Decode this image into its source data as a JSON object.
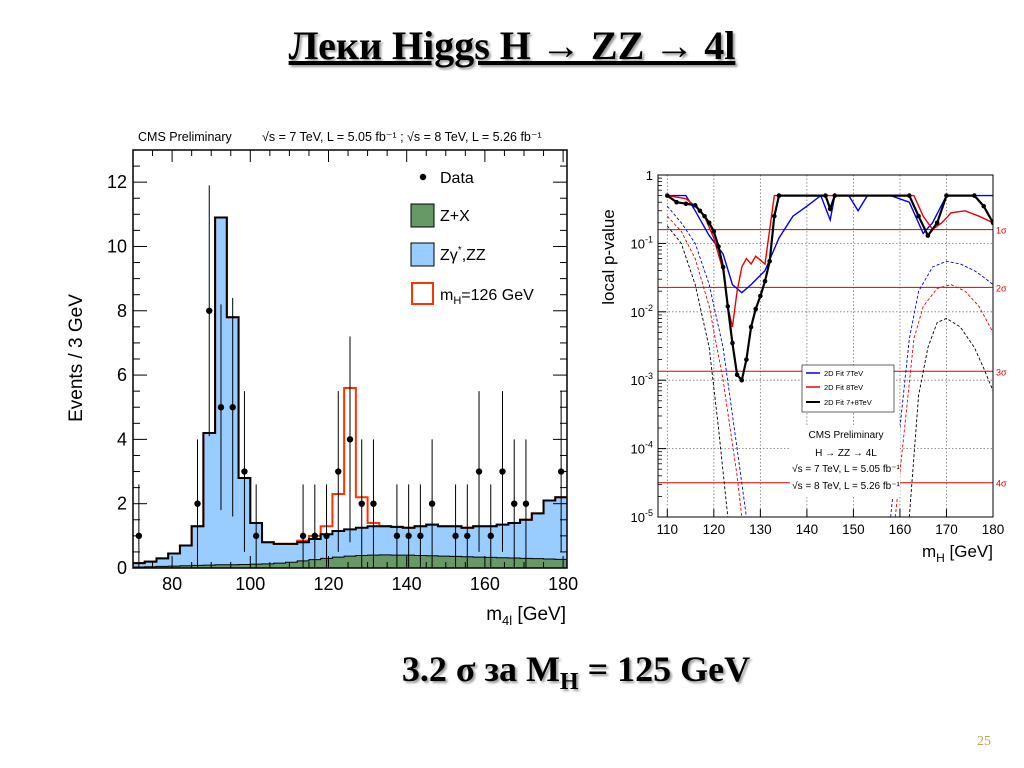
{
  "slide": {
    "title": "Леки Higgs H → ZZ → 4l",
    "subtitle_main": "3.2 σ за M",
    "subtitle_sub": "H",
    "subtitle_tail": " = 125 GeV",
    "page_number": "25"
  },
  "chart_data": [
    {
      "type": "bar",
      "title": "CMS Preliminary",
      "subtitle": "√s = 7 TeV, L = 5.05 fb⁻¹ ; √s = 8 TeV, L = 5.26 fb⁻¹",
      "xlabel_main": "m",
      "xlabel_sub": "4l",
      "xlabel_tail": " [GeV]",
      "ylabel": "Events / 3 GeV",
      "xlim": [
        70,
        181
      ],
      "ylim": [
        0,
        13
      ],
      "x_ticks": [
        80,
        100,
        120,
        140,
        160,
        180
      ],
      "y_ticks": [
        0,
        2,
        4,
        6,
        8,
        10,
        12
      ],
      "legend": {
        "position": "top-right",
        "entries": [
          {
            "key": "data",
            "label": "Data"
          },
          {
            "key": "zx",
            "label": "Z+X"
          },
          {
            "key": "zz",
            "label_main": "Zγ",
            "label_sup": "*",
            "label_tail": ",ZZ"
          },
          {
            "key": "sig",
            "label_main": "m",
            "label_sub": "H",
            "label_tail": "=126 GeV"
          }
        ]
      },
      "colors": {
        "zz_fill": "#99ccff",
        "zx_fill": "#669966",
        "signal_line": "#ff3300",
        "outline": "#000000"
      },
      "bin_edges": [
        70,
        73,
        76,
        79,
        82,
        85,
        88,
        91,
        94,
        97,
        100,
        103,
        106,
        109,
        112,
        115,
        118,
        121,
        124,
        127,
        130,
        133,
        136,
        139,
        142,
        145,
        148,
        151,
        154,
        157,
        160,
        163,
        166,
        169,
        172,
        175,
        178,
        181
      ],
      "zx": [
        0.03,
        0.04,
        0.05,
        0.06,
        0.07,
        0.08,
        0.09,
        0.1,
        0.1,
        0.11,
        0.12,
        0.13,
        0.15,
        0.18,
        0.22,
        0.26,
        0.3,
        0.34,
        0.37,
        0.39,
        0.4,
        0.41,
        0.4,
        0.4,
        0.39,
        0.38,
        0.37,
        0.36,
        0.35,
        0.34,
        0.33,
        0.32,
        0.31,
        0.3,
        0.29,
        0.28,
        0.27
      ],
      "total_bkg": [
        0.15,
        0.2,
        0.3,
        0.45,
        0.7,
        1.3,
        4.2,
        10.9,
        7.8,
        2.8,
        1.4,
        0.8,
        0.75,
        0.75,
        0.8,
        0.9,
        1.05,
        1.15,
        1.2,
        1.25,
        1.3,
        1.3,
        1.28,
        1.25,
        1.3,
        1.35,
        1.3,
        1.3,
        1.25,
        1.3,
        1.3,
        1.35,
        1.4,
        1.5,
        1.7,
        2.1,
        2.2
      ],
      "signal_total": [
        0.15,
        0.2,
        0.3,
        0.45,
        0.7,
        1.3,
        4.2,
        10.9,
        7.8,
        2.8,
        1.4,
        0.8,
        0.75,
        0.75,
        0.85,
        1.0,
        1.3,
        2.3,
        5.6,
        2.2,
        1.4,
        1.3,
        1.28,
        1.25,
        1.3,
        1.35,
        1.3,
        1.3,
        1.25,
        1.3,
        1.3,
        1.35,
        1.4,
        1.5,
        1.7,
        2.1,
        2.2
      ],
      "data_points": [
        {
          "x": 71.5,
          "y": 1,
          "err": 1.6
        },
        {
          "x": 86.5,
          "y": 2,
          "err": 2.0
        },
        {
          "x": 89.5,
          "y": 8,
          "err": 3.9
        },
        {
          "x": 92.5,
          "y": 5,
          "err": 3.2
        },
        {
          "x": 95.5,
          "y": 5,
          "err": 3.4
        },
        {
          "x": 98.5,
          "y": 3,
          "err": 2.5
        },
        {
          "x": 101.5,
          "y": 1,
          "err": 1.6
        },
        {
          "x": 113.5,
          "y": 1,
          "err": 1.6
        },
        {
          "x": 116.5,
          "y": 1,
          "err": 1.6
        },
        {
          "x": 119.5,
          "y": 1,
          "err": 1.6
        },
        {
          "x": 122.5,
          "y": 3,
          "err": 2.5
        },
        {
          "x": 125.5,
          "y": 4,
          "err": 3.2
        },
        {
          "x": 128.5,
          "y": 2,
          "err": 2.0
        },
        {
          "x": 131.5,
          "y": 2,
          "err": 2.0
        },
        {
          "x": 137.5,
          "y": 1,
          "err": 1.6
        },
        {
          "x": 140.5,
          "y": 1,
          "err": 1.6
        },
        {
          "x": 143.5,
          "y": 1,
          "err": 1.6
        },
        {
          "x": 146.5,
          "y": 2,
          "err": 2.0
        },
        {
          "x": 152.5,
          "y": 1,
          "err": 1.6
        },
        {
          "x": 155.5,
          "y": 1,
          "err": 1.6
        },
        {
          "x": 158.5,
          "y": 3,
          "err": 2.5
        },
        {
          "x": 161.5,
          "y": 1,
          "err": 1.6
        },
        {
          "x": 164.5,
          "y": 3,
          "err": 2.5
        },
        {
          "x": 167.5,
          "y": 2,
          "err": 2.0
        },
        {
          "x": 170.5,
          "y": 2,
          "err": 2.0
        },
        {
          "x": 179.5,
          "y": 3,
          "err": 2.5
        }
      ]
    },
    {
      "type": "line",
      "xlabel_main": "m",
      "xlabel_sub": "H",
      "xlabel_tail": " [GeV]",
      "ylabel": "local p-value",
      "y_scale": "log",
      "xlim": [
        108,
        180
      ],
      "ylim": [
        1e-05,
        1
      ],
      "x_ticks": [
        110,
        120,
        130,
        140,
        150,
        160,
        170,
        180
      ],
      "y_ticks": [
        {
          "v": 1,
          "base": "1",
          "exp": ""
        },
        {
          "v": 0.1,
          "base": "10",
          "exp": "-1"
        },
        {
          "v": 0.01,
          "base": "10",
          "exp": "-2"
        },
        {
          "v": 0.001,
          "base": "10",
          "exp": "-3"
        },
        {
          "v": 0.0001,
          "base": "10",
          "exp": "-4"
        },
        {
          "v": 1e-05,
          "base": "10",
          "exp": "-5"
        }
      ],
      "sigma_lines": [
        {
          "label": "1σ",
          "p": 0.159
        },
        {
          "label": "2σ",
          "p": 0.0228
        },
        {
          "label": "3σ",
          "p": 0.00135
        },
        {
          "label": "4σ",
          "p": 3.17e-05
        }
      ],
      "legend": {
        "position": "center-right",
        "entries": [
          {
            "label": "2D Fit 7TeV",
            "color": "#0000ee"
          },
          {
            "label": "2D Fit 8TeV",
            "color": "#ee0000"
          },
          {
            "label": "2D Fit 7+8TeV",
            "color": "#000000"
          }
        ]
      },
      "annotations": [
        "CMS Preliminary",
        "H → ZZ → 4L",
        "√s = 7 TeV, L = 5.05 fb⁻¹",
        "√s = 8 TeV, L = 5.26 fb⁻¹"
      ],
      "colors": {
        "grid": "#777777",
        "sigma": "#dd0000"
      },
      "series": [
        {
          "key": "fit7",
          "color": "#0000ee",
          "points": [
            [
              110,
              0.5
            ],
            [
              114,
              0.5
            ],
            [
              116,
              0.3
            ],
            [
              119,
              0.13
            ],
            [
              122,
              0.07
            ],
            [
              124,
              0.025
            ],
            [
              126,
              0.019
            ],
            [
              128,
              0.025
            ],
            [
              131,
              0.04
            ],
            [
              134,
              0.12
            ],
            [
              137,
              0.25
            ],
            [
              140,
              0.35
            ],
            [
              143,
              0.5
            ],
            [
              145,
              0.22
            ],
            [
              146,
              0.5
            ],
            [
              149,
              0.5
            ],
            [
              151,
              0.3
            ],
            [
              153,
              0.5
            ],
            [
              158,
              0.5
            ],
            [
              162,
              0.4
            ],
            [
              165,
              0.14
            ],
            [
              167,
              0.2
            ],
            [
              170,
              0.5
            ],
            [
              180,
              0.5
            ]
          ]
        },
        {
          "key": "fit8",
          "color": "#ee0000",
          "points": [
            [
              110,
              0.5
            ],
            [
              114,
              0.45
            ],
            [
              116,
              0.35
            ],
            [
              118,
              0.25
            ],
            [
              120,
              0.12
            ],
            [
              122,
              0.04
            ],
            [
              123,
              0.012
            ],
            [
              124,
              0.006
            ],
            [
              125,
              0.02
            ],
            [
              126,
              0.045
            ],
            [
              127,
              0.06
            ],
            [
              128,
              0.05
            ],
            [
              129,
              0.065
            ],
            [
              131,
              0.05
            ],
            [
              133,
              0.5
            ],
            [
              163,
              0.5
            ],
            [
              165,
              0.25
            ],
            [
              167,
              0.16
            ],
            [
              169,
              0.2
            ],
            [
              171,
              0.28
            ],
            [
              174,
              0.3
            ],
            [
              177,
              0.25
            ],
            [
              180,
              0.2
            ]
          ]
        },
        {
          "key": "fit78",
          "color": "#000000",
          "points": [
            [
              110,
              0.5
            ],
            [
              112,
              0.4
            ],
            [
              114,
              0.38
            ],
            [
              116,
              0.36
            ],
            [
              117,
              0.3
            ],
            [
              118,
              0.25
            ],
            [
              119,
              0.2
            ],
            [
              120,
              0.15
            ],
            [
              121,
              0.09
            ],
            [
              122,
              0.045
            ],
            [
              123,
              0.012
            ],
            [
              124,
              0.0035
            ],
            [
              125,
              0.0012
            ],
            [
              126,
              0.001
            ],
            [
              127,
              0.002
            ],
            [
              128,
              0.006
            ],
            [
              129,
              0.011
            ],
            [
              130,
              0.017
            ],
            [
              131,
              0.028
            ],
            [
              132,
              0.055
            ],
            [
              133,
              0.25
            ],
            [
              134,
              0.5
            ],
            [
              144,
              0.5
            ],
            [
              145,
              0.32
            ],
            [
              146,
              0.5
            ],
            [
              162,
              0.5
            ],
            [
              164,
              0.25
            ],
            [
              166,
              0.13
            ],
            [
              168,
              0.2
            ],
            [
              170,
              0.5
            ],
            [
              176,
              0.5
            ],
            [
              178,
              0.35
            ],
            [
              180,
              0.2
            ]
          ]
        },
        {
          "key": "exp7",
          "color": "#0000ee",
          "dashed": true,
          "segments": [
            [
              [
                110,
                0.35
              ],
              [
                113,
                0.2
              ],
              [
                116,
                0.1
              ],
              [
                119,
                0.025
              ],
              [
                122,
                0.003
              ],
              [
                125,
                0.0001
              ],
              [
                127,
                1e-05
              ]
            ],
            [
              [
                158,
                1e-05
              ],
              [
                160,
                0.0002
              ],
              [
                162,
                0.004
              ],
              [
                164,
                0.02
              ],
              [
                167,
                0.045
              ],
              [
                170,
                0.055
              ],
              [
                173,
                0.05
              ],
              [
                176,
                0.04
              ],
              [
                178,
                0.032
              ],
              [
                180,
                0.025
              ]
            ]
          ]
        },
        {
          "key": "exp8",
          "color": "#ee0000",
          "dashed": true,
          "segments": [
            [
              [
                110,
                0.25
              ],
              [
                113,
                0.15
              ],
              [
                116,
                0.06
              ],
              [
                119,
                0.012
              ],
              [
                122,
                0.001
              ],
              [
                125,
                4e-05
              ],
              [
                126,
                1e-05
              ]
            ],
            [
              [
                159,
                1e-05
              ],
              [
                161,
                0.0002
              ],
              [
                163,
                0.004
              ],
              [
                165,
                0.012
              ],
              [
                168,
                0.022
              ],
              [
                171,
                0.025
              ],
              [
                174,
                0.02
              ],
              [
                177,
                0.012
              ],
              [
                180,
                0.005
              ]
            ]
          ]
        },
        {
          "key": "exp78",
          "color": "#000000",
          "dashed": true,
          "segments": [
            [
              [
                110,
                0.18
              ],
              [
                113,
                0.1
              ],
              [
                116,
                0.025
              ],
              [
                119,
                0.003
              ],
              [
                121,
                0.0002
              ],
              [
                123,
                1e-05
              ]
            ],
            [
              [
                162,
                1e-05
              ],
              [
                164,
                0.0006
              ],
              [
                166,
                0.003
              ],
              [
                168,
                0.007
              ],
              [
                170,
                0.008
              ],
              [
                173,
                0.006
              ],
              [
                176,
                0.003
              ],
              [
                178,
                0.0015
              ],
              [
                180,
                0.0007
              ]
            ]
          ]
        }
      ]
    }
  ]
}
